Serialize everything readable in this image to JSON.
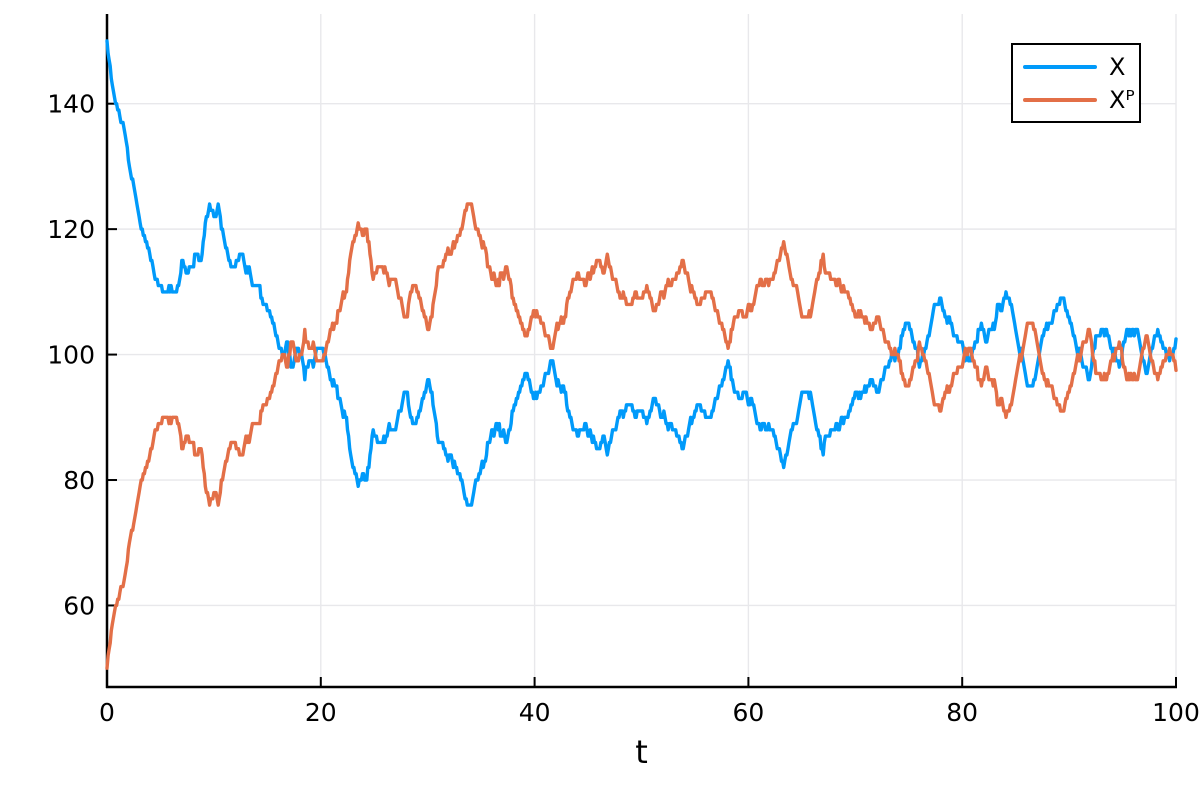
{
  "chart_data": {
    "type": "line",
    "title": "",
    "xlabel": "t",
    "ylabel": "",
    "xlim": [
      0,
      100
    ],
    "ylim": [
      47,
      154.3
    ],
    "xticks": [
      0,
      20,
      40,
      60,
      80,
      100
    ],
    "xtick_labels": [
      "0",
      "20",
      "40",
      "60",
      "80",
      "100"
    ],
    "yticks": [
      60,
      80,
      100,
      120,
      140
    ],
    "ytick_labels": [
      "60",
      "80",
      "100",
      "120",
      "140"
    ],
    "grid": true,
    "legend_position": "top-right",
    "colors": {
      "axis": "#000000",
      "grid": "#E8E8EB",
      "tick_text": "#000000",
      "background": "#FFFFFF"
    },
    "texture": {
      "style": "integer-jump-steps",
      "dt": 0.1,
      "noise_amplitude": 1.5,
      "noise_step": 0.85,
      "seed": 12
    },
    "series": [
      {
        "name": "X",
        "color": "#009AFA",
        "description": "starts at 150, decays toward 100, mirror-symmetric with Xᴾ about 100",
        "keypoints": [
          [
            0,
            150
          ],
          [
            0.4,
            145
          ],
          [
            0.8,
            141
          ],
          [
            1.2,
            138.5
          ],
          [
            1.5,
            137
          ],
          [
            1.8,
            133
          ],
          [
            2.2,
            127.5
          ],
          [
            2.7,
            126.5
          ],
          [
            3.1,
            122
          ],
          [
            3.5,
            120
          ],
          [
            4,
            117.5
          ],
          [
            4.5,
            113.5
          ],
          [
            5,
            112
          ],
          [
            5.5,
            111
          ],
          [
            6,
            112
          ],
          [
            6.4,
            111
          ],
          [
            6.8,
            113
          ],
          [
            7.1,
            115.5
          ],
          [
            7.5,
            112.5
          ],
          [
            8,
            114
          ],
          [
            8.4,
            116.5
          ],
          [
            8.8,
            115
          ],
          [
            9.2,
            120
          ],
          [
            9.6,
            123
          ],
          [
            10,
            122
          ],
          [
            10.4,
            123.5
          ],
          [
            10.8,
            121
          ],
          [
            11.3,
            117.5
          ],
          [
            11.7,
            115
          ],
          [
            12.2,
            116.5
          ],
          [
            12.6,
            117.5
          ],
          [
            13,
            114.5
          ],
          [
            13.5,
            113
          ],
          [
            14,
            112.5
          ],
          [
            14.6,
            109.5
          ],
          [
            15.2,
            108.5
          ],
          [
            15.7,
            105.5
          ],
          [
            16.1,
            102
          ],
          [
            16.5,
            99.5
          ],
          [
            16.9,
            101.5
          ],
          [
            17.3,
            99
          ],
          [
            17.7,
            101.5
          ],
          [
            18.1,
            100
          ],
          [
            18.5,
            97.5
          ],
          [
            18.9,
            100.5
          ],
          [
            19.3,
            99
          ],
          [
            19.7,
            101
          ],
          [
            20.1,
            100.5
          ],
          [
            20.5,
            99.5
          ],
          [
            20.9,
            97
          ],
          [
            21.4,
            94.5
          ],
          [
            21.9,
            91
          ],
          [
            22.4,
            89
          ],
          [
            22.9,
            84.5
          ],
          [
            23.5,
            80
          ],
          [
            23.9,
            81.5
          ],
          [
            24.3,
            80.5
          ],
          [
            24.9,
            87.5
          ],
          [
            25.4,
            86
          ],
          [
            25.9,
            85.5
          ],
          [
            26.4,
            87
          ],
          [
            26.9,
            86
          ],
          [
            27.4,
            90
          ],
          [
            27.9,
            94
          ],
          [
            28.3,
            91.5
          ],
          [
            28.8,
            90.5
          ],
          [
            29.3,
            92
          ],
          [
            29.8,
            95
          ],
          [
            30.1,
            97
          ],
          [
            30.5,
            93.5
          ],
          [
            31,
            87.5
          ],
          [
            31.6,
            85.5
          ],
          [
            32.2,
            84
          ],
          [
            32.8,
            82.5
          ],
          [
            33.2,
            80
          ],
          [
            33.6,
            76.5
          ],
          [
            34,
            75.3
          ],
          [
            34.4,
            78.5
          ],
          [
            34.9,
            82
          ],
          [
            35.3,
            84
          ],
          [
            35.8,
            86.5
          ],
          [
            36.3,
            89
          ],
          [
            36.8,
            87.5
          ],
          [
            37.4,
            86.5
          ],
          [
            38,
            92.5
          ],
          [
            38.6,
            94
          ],
          [
            39.2,
            95.5
          ],
          [
            39.8,
            93.5
          ],
          [
            40.3,
            94
          ],
          [
            41,
            96
          ],
          [
            41.6,
            97.5
          ],
          [
            42.2,
            96
          ],
          [
            42.8,
            93.5
          ],
          [
            43.5,
            90
          ],
          [
            44.2,
            88.5
          ],
          [
            44.8,
            87.5
          ],
          [
            45.4,
            85.5
          ],
          [
            45.9,
            84.3
          ],
          [
            46.4,
            86
          ],
          [
            46.9,
            84.5
          ],
          [
            47.5,
            87
          ],
          [
            48.1,
            89.5
          ],
          [
            48.7,
            91
          ],
          [
            49.4,
            91.5
          ],
          [
            50,
            91.8
          ],
          [
            50.6,
            90
          ],
          [
            51.2,
            91.5
          ],
          [
            51.8,
            89.5
          ],
          [
            52.4,
            88.5
          ],
          [
            53,
            87.5
          ],
          [
            53.5,
            86.8
          ],
          [
            53.9,
            86
          ],
          [
            54.4,
            89.5
          ],
          [
            54.9,
            91.5
          ],
          [
            55.3,
            93.8
          ],
          [
            55.8,
            92
          ],
          [
            56.3,
            91
          ],
          [
            56.8,
            93
          ],
          [
            57.3,
            95.5
          ],
          [
            57.8,
            98.2
          ],
          [
            58.1,
            98.7
          ],
          [
            58.5,
            96.5
          ],
          [
            59,
            95
          ],
          [
            59.6,
            93.5
          ],
          [
            60.1,
            92.7
          ],
          [
            60.7,
            90.5
          ],
          [
            61.2,
            88.5
          ],
          [
            61.8,
            87.5
          ],
          [
            62.4,
            85.8
          ],
          [
            63,
            84
          ],
          [
            63.4,
            83.2
          ],
          [
            63.9,
            86
          ],
          [
            64.5,
            89.5
          ],
          [
            65,
            92
          ],
          [
            65.5,
            94.5
          ],
          [
            65.9,
            94.8
          ],
          [
            66.3,
            90
          ],
          [
            66.8,
            85.3
          ],
          [
            67.3,
            87
          ],
          [
            67.9,
            89
          ],
          [
            68.5,
            88
          ],
          [
            69.1,
            90.5
          ],
          [
            69.8,
            94
          ],
          [
            70.4,
            94.5
          ],
          [
            70.9,
            95.1
          ],
          [
            71.6,
            96.7
          ],
          [
            72.2,
            95.5
          ],
          [
            72.9,
            97.6
          ],
          [
            73.4,
            99.5
          ],
          [
            73.9,
            101
          ],
          [
            74.4,
            103
          ],
          [
            74.9,
            103.8
          ],
          [
            75.4,
            101
          ],
          [
            76,
            98
          ],
          [
            76.5,
            100.5
          ],
          [
            77.1,
            104
          ],
          [
            77.9,
            109.8
          ],
          [
            78.5,
            107
          ],
          [
            79.2,
            104.5
          ],
          [
            79.9,
            101.5
          ],
          [
            80.3,
            99
          ],
          [
            80.8,
            97.5
          ],
          [
            81.3,
            102
          ],
          [
            81.7,
            105.5
          ],
          [
            82.2,
            103
          ],
          [
            82.8,
            104
          ],
          [
            83.4,
            106.5
          ],
          [
            84.1,
            110
          ],
          [
            84.6,
            106.5
          ],
          [
            85.1,
            103.5
          ],
          [
            85.6,
            99.5
          ],
          [
            86.1,
            96
          ],
          [
            86.7,
            97
          ],
          [
            87.3,
            100
          ],
          [
            87.9,
            103.5
          ],
          [
            88.5,
            107
          ],
          [
            89,
            109
          ],
          [
            89.6,
            109.2
          ],
          [
            90.2,
            106
          ],
          [
            90.8,
            102
          ],
          [
            91.4,
            99
          ],
          [
            91.9,
            97
          ],
          [
            92.5,
            104
          ],
          [
            93,
            104.5
          ],
          [
            93.5,
            103
          ],
          [
            94.1,
            100
          ],
          [
            94.7,
            97
          ],
          [
            95.3,
            103.5
          ],
          [
            95.8,
            102
          ],
          [
            96.3,
            104
          ],
          [
            96.8,
            99
          ],
          [
            97.2,
            96.5
          ],
          [
            97.7,
            99
          ],
          [
            98.3,
            103.5
          ],
          [
            98.8,
            101.5
          ],
          [
            99.3,
            99
          ],
          [
            100,
            102.5
          ]
        ]
      },
      {
        "name": "Xᴾ",
        "color": "#E36F47",
        "description": "mirror image of X about 100 (X + Xᴾ = 200); starts at 50, rises toward 100",
        "mirror_of": "X",
        "mirror_sum": 200
      }
    ]
  },
  "legend": {
    "items": [
      {
        "label": "X",
        "color": "#009AFA"
      },
      {
        "label": "Xᴾ",
        "color": "#E36F47"
      }
    ]
  }
}
